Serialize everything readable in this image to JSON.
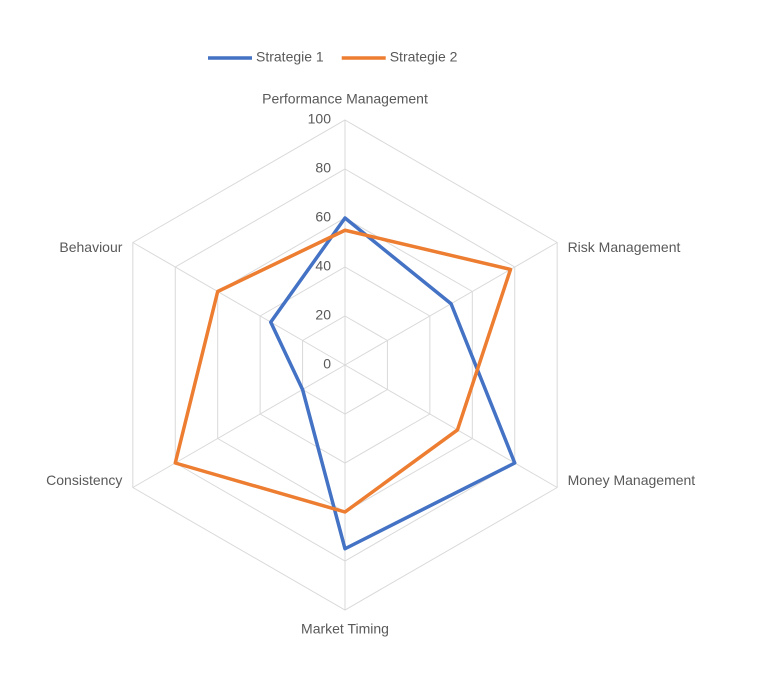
{
  "chart_data": {
    "type": "radar",
    "categories": [
      "Performance Management",
      "Risk Management",
      "Money Management",
      "Market Timing",
      "Consistency",
      "Behaviour"
    ],
    "series": [
      {
        "name": "Strategie 1",
        "color": "#4472c4",
        "values": [
          60,
          50,
          80,
          75,
          20,
          35
        ]
      },
      {
        "name": "Strategie 2",
        "color": "#ed7d31",
        "values": [
          55,
          78,
          53,
          60,
          80,
          60
        ]
      }
    ],
    "ylim": [
      0,
      100
    ],
    "yticks": [
      0,
      20,
      40,
      60,
      80,
      100
    ],
    "grid": true,
    "legend": "top"
  }
}
